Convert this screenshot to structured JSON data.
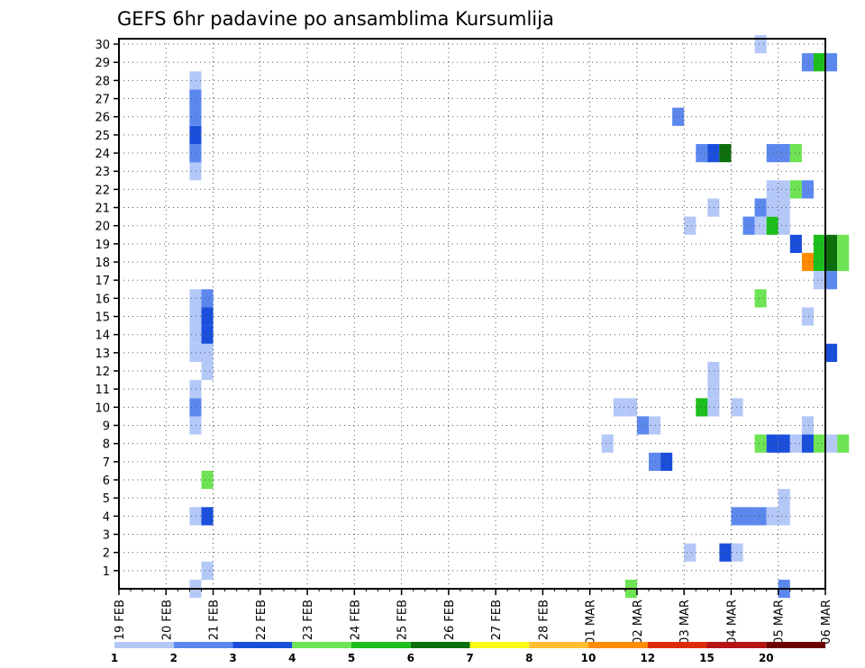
{
  "chart_data": {
    "type": "heatmap",
    "title": "GEFS 6hr padavine po ansamblima Kursumlija",
    "xlabel": "",
    "ylabel": "",
    "x_tick_labels": [
      "19 FEB",
      "20 FEB",
      "21 FEB",
      "22 FEB",
      "23 FEB",
      "24 FEB",
      "25 FEB",
      "26 FEB",
      "27 FEB",
      "28 FEB",
      "01 MAR",
      "02 MAR",
      "03 MAR",
      "04 MAR",
      "05 MAR",
      "06 MAR"
    ],
    "y_tick_labels": [
      "1",
      "2",
      "3",
      "4",
      "5",
      "6",
      "7",
      "8",
      "9",
      "10",
      "11",
      "12",
      "13",
      "14",
      "15",
      "16",
      "17",
      "18",
      "19",
      "20",
      "21",
      "22",
      "23",
      "24",
      "25",
      "26",
      "27",
      "28",
      "29",
      "30"
    ],
    "y_range": [
      0,
      30
    ],
    "x_steps_per_day": 4,
    "grid": true,
    "legend_position": "bottom",
    "colorbar": {
      "labels": [
        "1",
        "2",
        "3",
        "4",
        "5",
        "6",
        "7",
        "8",
        "10",
        "12",
        "15",
        "20"
      ],
      "colors": [
        "#b4c8f8",
        "#5c88ee",
        "#1a4fdc",
        "#6ee454",
        "#1cbe1c",
        "#0c6e0c",
        "#fafa14",
        "#ffbe32",
        "#ff8c00",
        "#dc2d0a",
        "#b41414",
        "#6e0000"
      ]
    },
    "cells": [
      {
        "day": 2,
        "step": 0,
        "member": 0,
        "c": 0
      },
      {
        "day": 2,
        "step": 0,
        "member": 23,
        "c": 0
      },
      {
        "day": 2,
        "step": 0,
        "member": 24,
        "c": 2
      },
      {
        "day": 2,
        "step": 0,
        "member": 25,
        "c": 2
      },
      {
        "day": 2,
        "step": 0,
        "member": 26,
        "c": 0
      },
      {
        "day": 2,
        "step": 0,
        "member": 27,
        "c": 1
      },
      {
        "day": 2,
        "step": 0,
        "member": 28,
        "c": 0
      },
      {
        "day": 2,
        "step": 0,
        "member": 4,
        "c": 0
      },
      {
        "day": 2,
        "step": 0,
        "member": 9,
        "c": 0
      },
      {
        "day": 2,
        "step": 0,
        "member": 10,
        "c": 1
      },
      {
        "day": 2,
        "step": 0,
        "member": 11,
        "c": 0
      },
      {
        "day": 2,
        "step": 0,
        "member": 13,
        "c": 0
      },
      {
        "day": 2,
        "step": 0,
        "member": 14,
        "c": 0
      },
      {
        "day": 2,
        "step": 0,
        "member": 15,
        "c": 0
      },
      {
        "day": 2,
        "step": 0,
        "member": 16,
        "c": 0
      },
      {
        "day": 2,
        "step": 0,
        "member": 24,
        "c": 1
      },
      {
        "day": 2,
        "step": 0,
        "member": 26,
        "c": 1
      },
      {
        "day": 2,
        "step": 0,
        "member": 27,
        "c": 1
      },
      {
        "day": 2,
        "step": 1,
        "member": 1,
        "c": 0
      },
      {
        "day": 2,
        "step": 1,
        "member": 4,
        "c": 2
      },
      {
        "day": 2,
        "step": 1,
        "member": 6,
        "c": 3
      },
      {
        "day": 2,
        "step": 1,
        "member": 12,
        "c": 0
      },
      {
        "day": 2,
        "step": 1,
        "member": 13,
        "c": 0
      },
      {
        "day": 2,
        "step": 1,
        "member": 14,
        "c": 2
      },
      {
        "day": 2,
        "step": 1,
        "member": 15,
        "c": 2
      },
      {
        "day": 2,
        "step": 1,
        "member": 16,
        "c": 1
      },
      {
        "day": 10,
        "step": 3,
        "member": 8,
        "c": 0
      },
      {
        "day": 11,
        "step": 0,
        "member": 10,
        "c": 0
      },
      {
        "day": 11,
        "step": 1,
        "member": 10,
        "c": 0
      },
      {
        "day": 11,
        "step": 1,
        "member": 0,
        "c": 3
      },
      {
        "day": 11,
        "step": 2,
        "member": 9,
        "c": 1
      },
      {
        "day": 11,
        "step": 3,
        "member": 9,
        "c": 0
      },
      {
        "day": 11,
        "step": 3,
        "member": 7,
        "c": 1
      },
      {
        "day": 12,
        "step": 0,
        "member": 7,
        "c": 2
      },
      {
        "day": 12,
        "step": 1,
        "member": 26,
        "c": 1
      },
      {
        "day": 12,
        "step": 2,
        "member": 20,
        "c": 0
      },
      {
        "day": 12,
        "step": 2,
        "member": 2,
        "c": 0
      },
      {
        "day": 12,
        "step": 3,
        "member": 10,
        "c": 4
      },
      {
        "day": 12,
        "step": 3,
        "member": 24,
        "c": 1
      },
      {
        "day": 13,
        "step": 0,
        "member": 24,
        "c": 2
      },
      {
        "day": 13,
        "step": 1,
        "member": 24,
        "c": 5
      },
      {
        "day": 13,
        "step": 0,
        "member": 21,
        "c": 0
      },
      {
        "day": 13,
        "step": 0,
        "member": 11,
        "c": 0
      },
      {
        "day": 13,
        "step": 0,
        "member": 12,
        "c": 0
      },
      {
        "day": 13,
        "step": 0,
        "member": 10,
        "c": 0
      },
      {
        "day": 13,
        "step": 1,
        "member": 2,
        "c": 2
      },
      {
        "day": 13,
        "step": 2,
        "member": 2,
        "c": 0
      },
      {
        "day": 13,
        "step": 2,
        "member": 10,
        "c": 0
      },
      {
        "day": 13,
        "step": 2,
        "member": 4,
        "c": 1
      },
      {
        "day": 13,
        "step": 3,
        "member": 4,
        "c": 1
      },
      {
        "day": 14,
        "step": 0,
        "member": 4,
        "c": 1
      },
      {
        "day": 13,
        "step": 3,
        "member": 20,
        "c": 1
      },
      {
        "day": 14,
        "step": 0,
        "member": 30,
        "c": 0
      },
      {
        "day": 14,
        "step": 0,
        "member": 8,
        "c": 3
      },
      {
        "day": 14,
        "step": 1,
        "member": 8,
        "c": 2
      },
      {
        "day": 14,
        "step": 2,
        "member": 8,
        "c": 2
      },
      {
        "day": 14,
        "step": 0,
        "member": 16,
        "c": 3
      },
      {
        "day": 14,
        "step": 0,
        "member": 21,
        "c": 1
      },
      {
        "day": 14,
        "step": 0,
        "member": 20,
        "c": 0
      },
      {
        "day": 14,
        "step": 1,
        "member": 20,
        "c": 4
      },
      {
        "day": 14,
        "step": 1,
        "member": 22,
        "c": 0
      },
      {
        "day": 14,
        "step": 1,
        "member": 21,
        "c": 0
      },
      {
        "day": 14,
        "step": 1,
        "member": 24,
        "c": 1
      },
      {
        "day": 14,
        "step": 2,
        "member": 24,
        "c": 1
      },
      {
        "day": 14,
        "step": 3,
        "member": 24,
        "c": 3
      },
      {
        "day": 14,
        "step": 1,
        "member": 4,
        "c": 0
      },
      {
        "day": 14,
        "step": 2,
        "member": 4,
        "c": 0
      },
      {
        "day": 14,
        "step": 2,
        "member": 5,
        "c": 0
      },
      {
        "day": 14,
        "step": 2,
        "member": 22,
        "c": 0
      },
      {
        "day": 14,
        "step": 2,
        "member": 21,
        "c": 0
      },
      {
        "day": 14,
        "step": 2,
        "member": 20,
        "c": 0
      },
      {
        "day": 14,
        "step": 2,
        "member": 0,
        "c": 1
      },
      {
        "day": 14,
        "step": 3,
        "member": 22,
        "c": 3
      },
      {
        "day": 14,
        "step": 3,
        "member": 19,
        "c": 2
      },
      {
        "day": 14,
        "step": 3,
        "member": 8,
        "c": 0
      },
      {
        "day": 15,
        "step": 0,
        "member": 22,
        "c": 1
      },
      {
        "day": 15,
        "step": 0,
        "member": 29,
        "c": 1
      },
      {
        "day": 15,
        "step": 1,
        "member": 29,
        "c": 4
      },
      {
        "day": 15,
        "step": 2,
        "member": 29,
        "c": 1
      },
      {
        "day": 15,
        "step": 0,
        "member": 18,
        "c": 8
      },
      {
        "day": 15,
        "step": 1,
        "member": 18,
        "c": 4
      },
      {
        "day": 15,
        "step": 2,
        "member": 18,
        "c": 5
      },
      {
        "day": 15,
        "step": 3,
        "member": 18,
        "c": 3
      },
      {
        "day": 15,
        "step": 1,
        "member": 19,
        "c": 4
      },
      {
        "day": 15,
        "step": 2,
        "member": 19,
        "c": 5
      },
      {
        "day": 15,
        "step": 3,
        "member": 19,
        "c": 3
      },
      {
        "day": 15,
        "step": 1,
        "member": 17,
        "c": 0
      },
      {
        "day": 15,
        "step": 2,
        "member": 17,
        "c": 1
      },
      {
        "day": 15,
        "step": 0,
        "member": 15,
        "c": 0
      },
      {
        "day": 15,
        "step": 2,
        "member": 13,
        "c": 2
      },
      {
        "day": 15,
        "step": 0,
        "member": 9,
        "c": 0
      },
      {
        "day": 15,
        "step": 0,
        "member": 8,
        "c": 2
      },
      {
        "day": 15,
        "step": 1,
        "member": 8,
        "c": 3
      },
      {
        "day": 15,
        "step": 2,
        "member": 8,
        "c": 0
      },
      {
        "day": 15,
        "step": 3,
        "member": 8,
        "c": 3
      }
    ]
  }
}
